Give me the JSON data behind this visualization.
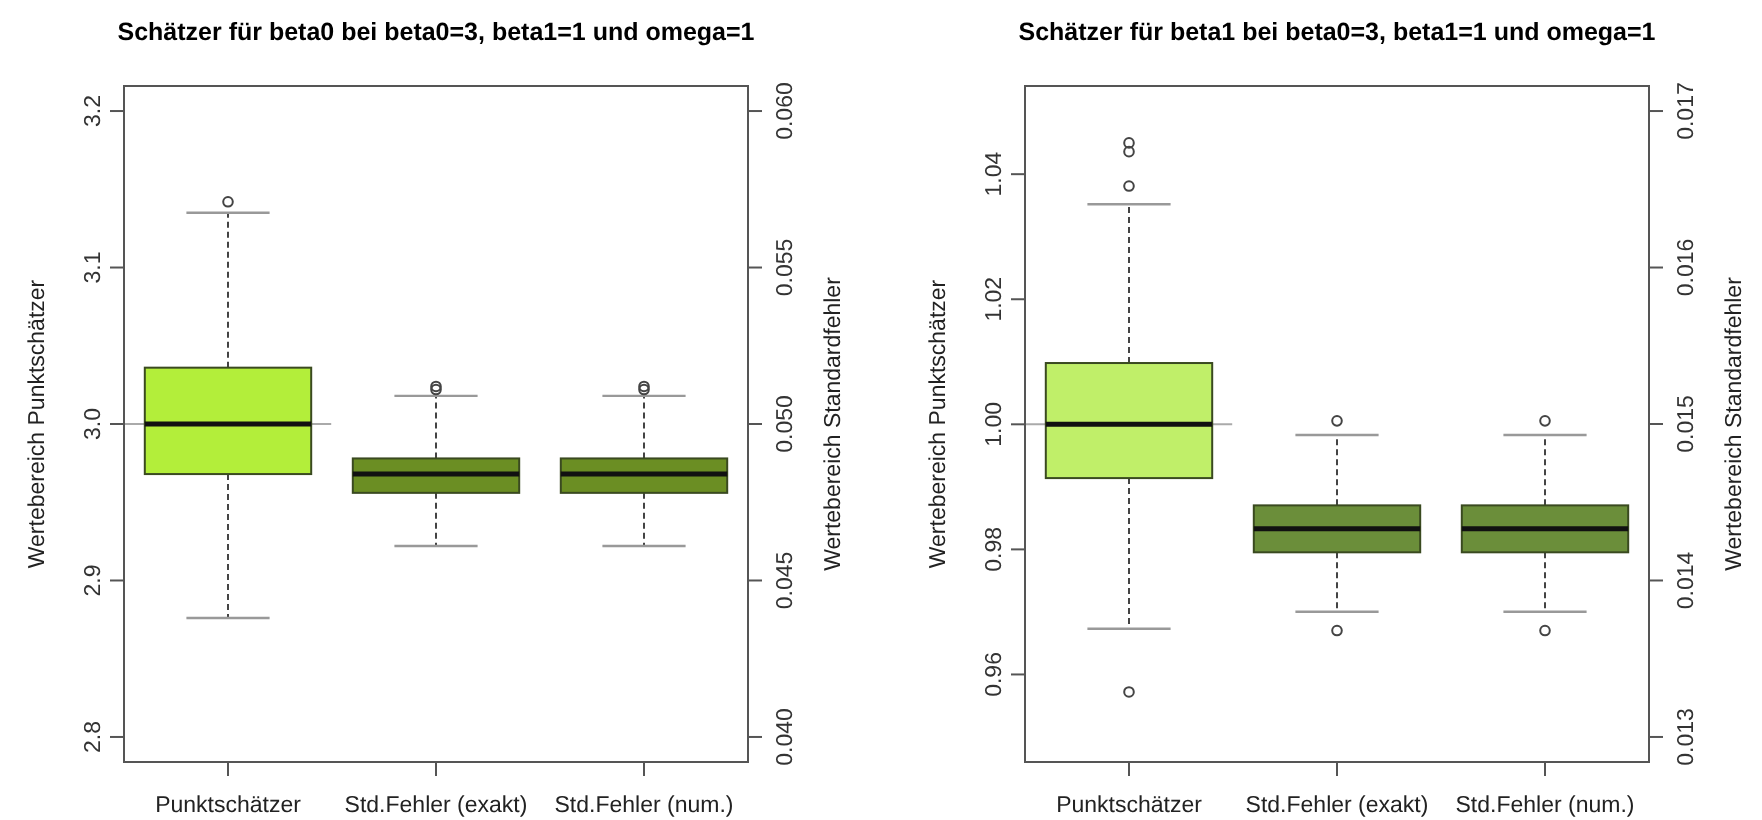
{
  "chart_data": [
    {
      "type": "box",
      "title": "Schätzer für beta0 bei beta0=3, beta1=1 und omega=1",
      "ylabel": "Wertebereich Punktschätzer",
      "y2label": "Wertebereich Standardfehler",
      "categories": [
        "Punktschätzer",
        "Std.Fehler (exakt)",
        "Std.Fehler (num.)"
      ],
      "series": [
        {
          "color": "#b3ee3a",
          "boxes": [
            {
              "low": 2.876,
              "q1": 2.968,
              "median": 3.0,
              "q3": 3.036,
              "high": 3.135,
              "outliers": [
                3.142
              ]
            },
            null,
            null
          ]
        },
        {
          "color": "#6b8e23",
          "axis": "y2",
          "boxes": [
            null,
            {
              "low": 0.0461,
              "q1": 0.0478,
              "median": 0.0484,
              "q3": 0.0489,
              "high": 0.0509,
              "outliers": [
                0.0511,
                0.0512
              ]
            },
            {
              "low": 0.0461,
              "q1": 0.0478,
              "median": 0.0484,
              "q3": 0.0489,
              "high": 0.0509,
              "outliers": [
                0.0511,
                0.0512
              ]
            }
          ]
        }
      ],
      "ylim": [
        2.784,
        3.216
      ],
      "yticks": [
        {
          "value": 2.8,
          "label": "2.8"
        },
        {
          "value": 2.9,
          "label": "2.9"
        },
        {
          "value": 3,
          "label": "3.0"
        },
        {
          "value": 3.1,
          "label": "3.1"
        },
        {
          "value": 3.2,
          "label": "3.2"
        }
      ],
      "y2lim": [
        0.0392,
        0.0608
      ],
      "y2ticks": [
        {
          "value": 0.04,
          "label": "0.040"
        },
        0.045,
        {
          "value": 0.05,
          "label": "0.050"
        },
        0.055,
        {
          "value": 0.06,
          "label": "0.060"
        }
      ],
      "ref_lines": [
        {
          "axis": "y",
          "value": 3,
          "color": "#aaaaaa"
        }
      ],
      "grid": false
    },
    {
      "type": "box",
      "title": "Schätzer für beta1 bei beta0=3, beta1=1 und omega=1",
      "ylabel": "Wertebereich Punktschätzer",
      "y2label": "Wertebereich Standardfehler",
      "categories": [
        "Punktschätzer",
        "Std.Fehler (exakt)",
        "Std.Fehler (num.)"
      ],
      "series": [
        {
          "color": "#c0ef69",
          "boxes": [
            {
              "low": 0.9673,
              "q1": 0.9914,
              "median": 1.0,
              "q3": 1.0098,
              "high": 1.0352,
              "outliers": [
                1.045,
                1.0436,
                1.0381,
                0.9572
              ]
            },
            null,
            null
          ]
        },
        {
          "color": "#6b8e3a",
          "axis": "y2",
          "boxes": [
            null,
            {
              "low": 0.0138,
              "q1": 0.01418,
              "median": 0.01433,
              "q3": 0.01448,
              "high": 0.01493,
              "outliers": [
                0.01502,
                0.01368
              ]
            },
            {
              "low": 0.0138,
              "q1": 0.01418,
              "median": 0.01433,
              "q3": 0.01448,
              "high": 0.01493,
              "outliers": [
                0.01502,
                0.01368
              ]
            }
          ]
        }
      ],
      "ylim": [
        0.946,
        1.0541
      ],
      "yticks": [
        0.96,
        0.98,
        {
          "value": 1,
          "label": "1.00"
        },
        1.02,
        1.04
      ],
      "y2lim": [
        0.01284,
        0.01716
      ],
      "y2ticks": [
        0.013,
        0.014,
        0.015,
        0.016,
        0.017
      ],
      "ref_lines": [
        {
          "axis": "y",
          "value": 1,
          "color": "#aaaaaa"
        }
      ],
      "grid": false
    }
  ]
}
